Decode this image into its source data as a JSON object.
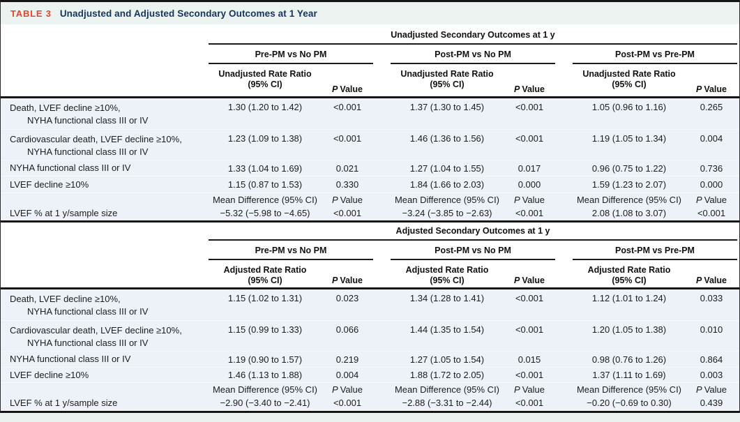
{
  "table": {
    "tag": "TABLE 3",
    "title": "Unadjusted and Adjusted Secondary Outcomes at 1 Year"
  },
  "colors": {
    "tag_red": "#e8432d",
    "title_navy": "#14355e",
    "band_tint": "#edf2f8",
    "titlebar_tint": "#ecf2f0",
    "rule_black": "#161616"
  },
  "sections": [
    {
      "header": "Unadjusted Secondary Outcomes at 1 y",
      "groups": [
        {
          "name": "Pre-PM vs No PM",
          "ratio_line1": "Unadjusted Rate Ratio",
          "ratio_line2": "(95% CI)",
          "p_italic": "P",
          "p_rest": "Value"
        },
        {
          "name": "Post-PM vs No PM",
          "ratio_line1": "Unadjusted Rate Ratio",
          "ratio_line2": "(95% CI)",
          "p_italic": "P",
          "p_rest": "Value"
        },
        {
          "name": "Post-PM vs Pre-PM",
          "ratio_line1": "Unadjusted Rate Ratio",
          "ratio_line2": "(95% CI)",
          "p_italic": "P",
          "p_rest": "Value"
        }
      ],
      "rows": [
        {
          "label1": "Death, LVEF decline ≥10%,",
          "label2": "NYHA functional class III or IV",
          "cells": [
            {
              "ratio": "1.30 (1.20 to 1.42)",
              "p": "<0.001"
            },
            {
              "ratio": "1.37 (1.30 to 1.45)",
              "p": "<0.001"
            },
            {
              "ratio": "1.05 (0.96 to 1.16)",
              "p": "0.265"
            }
          ]
        },
        {
          "label1": "Cardiovascular death, LVEF decline ≥10%,",
          "label2": "NYHA functional class III or IV",
          "cells": [
            {
              "ratio": "1.23 (1.09 to 1.38)",
              "p": "<0.001"
            },
            {
              "ratio": "1.46 (1.36 to 1.56)",
              "p": "<0.001"
            },
            {
              "ratio": "1.19 (1.05 to 1.34)",
              "p": "0.004"
            }
          ]
        },
        {
          "label1": "NYHA functional class III or IV",
          "cells": [
            {
              "ratio": "1.33 (1.04 to 1.69)",
              "p": "0.021"
            },
            {
              "ratio": "1.27 (1.04 to 1.55)",
              "p": "0.017"
            },
            {
              "ratio": "0.96 (0.75 to 1.22)",
              "p": "0.736"
            }
          ]
        },
        {
          "label1": "LVEF decline ≥10%",
          "cells": [
            {
              "ratio": "1.15 (0.87 to 1.53)",
              "p": "0.330"
            },
            {
              "ratio": "1.84 (1.66 to 2.03)",
              "p": "0.000"
            },
            {
              "ratio": "1.59 (1.23 to 2.07)",
              "p": "0.000"
            }
          ]
        }
      ],
      "mean": {
        "label": "LVEF % at 1 y/sample size",
        "subhead": "Mean Difference (95% CI)",
        "p_italic": "P",
        "p_rest": "Value",
        "cells": [
          {
            "value": "−5.32 (−5.98 to −4.65)",
            "p": "<0.001"
          },
          {
            "value": "−3.24 (−3.85 to −2.63)",
            "p": "<0.001"
          },
          {
            "value": "2.08 (1.08 to 3.07)",
            "p": "<0.001"
          }
        ]
      }
    },
    {
      "header": "Adjusted Secondary Outcomes at 1 y",
      "groups": [
        {
          "name": "Pre-PM vs No PM",
          "ratio_line1": "Adjusted Rate Ratio",
          "ratio_line2": "(95% CI)",
          "p_italic": "P",
          "p_rest": "Value"
        },
        {
          "name": "Post-PM vs No PM",
          "ratio_line1": "Adjusted Rate Ratio",
          "ratio_line2": "(95% CI)",
          "p_italic": "P",
          "p_rest": "Value"
        },
        {
          "name": "Post-PM vs Pre-PM",
          "ratio_line1": "Adjusted Rate Ratio",
          "ratio_line2": "(95% CI)",
          "p_italic": "P",
          "p_rest": "Value"
        }
      ],
      "rows": [
        {
          "label1": "Death, LVEF decline ≥10%,",
          "label2": "NYHA functional class III or IV",
          "cells": [
            {
              "ratio": "1.15 (1.02 to 1.31)",
              "p": "0.023"
            },
            {
              "ratio": "1.34 (1.28 to 1.41)",
              "p": "<0.001"
            },
            {
              "ratio": "1.12 (1.01 to 1.24)",
              "p": "0.033"
            }
          ]
        },
        {
          "label1": "Cardiovascular death, LVEF decline ≥10%,",
          "label2": "NYHA functional class III or IV",
          "cells": [
            {
              "ratio": "1.15 (0.99 to 1.33)",
              "p": "0.066"
            },
            {
              "ratio": "1.44 (1.35 to 1.54)",
              "p": "<0.001"
            },
            {
              "ratio": "1.20 (1.05 to 1.38)",
              "p": "0.010"
            }
          ]
        },
        {
          "label1": "NYHA functional class III or IV",
          "cells": [
            {
              "ratio": "1.19 (0.90 to 1.57)",
              "p": "0.219"
            },
            {
              "ratio": "1.27 (1.05 to 1.54)",
              "p": "0.015"
            },
            {
              "ratio": "0.98 (0.76 to 1.26)",
              "p": "0.864"
            }
          ]
        },
        {
          "label1": "LVEF decline ≥10%",
          "cells": [
            {
              "ratio": "1.46 (1.13 to 1.88)",
              "p": "0.004"
            },
            {
              "ratio": "1.88 (1.72 to 2.05)",
              "p": "<0.001"
            },
            {
              "ratio": "1.37 (1.11 to 1.69)",
              "p": "0.003"
            }
          ]
        }
      ],
      "mean": {
        "label": "LVEF % at 1 y/sample size",
        "subhead": "Mean Difference (95% CI)",
        "p_italic": "P",
        "p_rest": "Value",
        "cells": [
          {
            "value": "−2.90 (−3.40 to −2.41)",
            "p": "<0.001"
          },
          {
            "value": "−2.88 (−3.31 to −2.44)",
            "p": "<0.001"
          },
          {
            "value": "−0.20 (−0.69 to 0.30)",
            "p": "0.439"
          }
        ]
      }
    }
  ]
}
